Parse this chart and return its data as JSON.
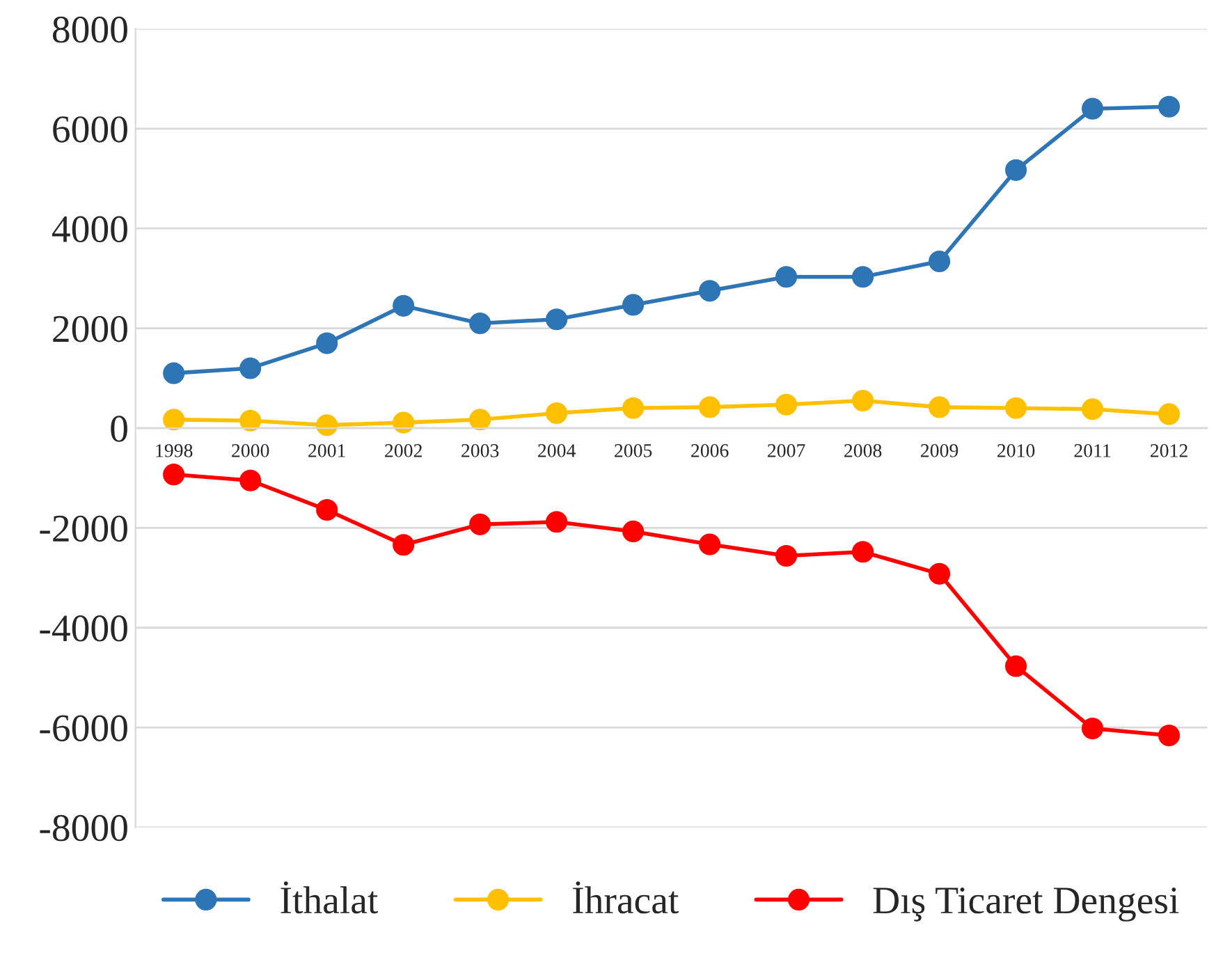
{
  "chart_data": {
    "type": "line",
    "categories": [
      "1998",
      "2000",
      "2001",
      "2002",
      "2003",
      "2004",
      "2005",
      "2006",
      "2007",
      "2008",
      "2009",
      "2010",
      "2011",
      "2012"
    ],
    "series": [
      {
        "name": "İthalat",
        "color": "#2e75b6",
        "values": [
          1100,
          1200,
          1700,
          2450,
          2100,
          2180,
          2470,
          2750,
          3030,
          3030,
          3340,
          5170,
          6400,
          6440
        ]
      },
      {
        "name": "İhracat",
        "color": "#ffc000",
        "values": [
          170,
          150,
          60,
          110,
          170,
          300,
          400,
          420,
          470,
          550,
          420,
          400,
          380,
          280
        ]
      },
      {
        "name": "Dış Ticaret Dengesi",
        "color": "#ff0000",
        "values": [
          -930,
          -1050,
          -1640,
          -2340,
          -1930,
          -1880,
          -2070,
          -2330,
          -2560,
          -2480,
          -2920,
          -4770,
          -6020,
          -6160
        ]
      }
    ],
    "ylim": [
      -8000,
      8000
    ],
    "yticks": [
      -8000,
      -6000,
      -4000,
      -2000,
      0,
      2000,
      4000,
      6000,
      8000
    ],
    "grid": "y",
    "legend": "bottom",
    "marker": "circle",
    "line_style": "solid"
  }
}
